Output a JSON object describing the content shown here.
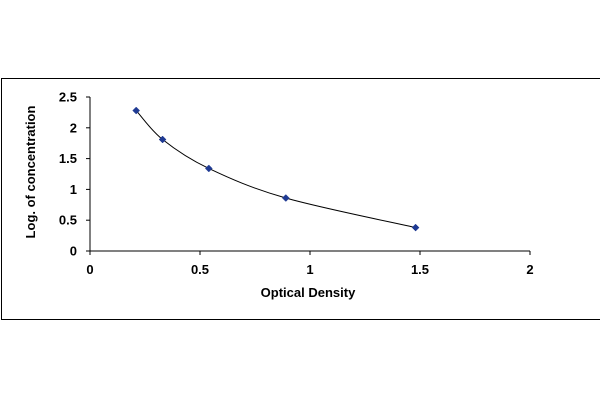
{
  "chart_data": {
    "type": "scatter",
    "title": "",
    "xlabel": "Optical Density",
    "ylabel": "Log. of concentration",
    "xlim": [
      0,
      2
    ],
    "ylim": [
      0,
      2.5
    ],
    "x_ticks": [
      "0",
      "0.5",
      "1",
      "1.5",
      "2"
    ],
    "y_ticks": [
      "0",
      "0.5",
      "1",
      "1.5",
      "2",
      "2.5"
    ],
    "grid": false,
    "legend": "none",
    "trendline": true,
    "series": [
      {
        "x": [
          0.21,
          0.33,
          0.54,
          0.89,
          1.48
        ],
        "y": [
          2.28,
          1.81,
          1.34,
          0.86,
          0.38
        ],
        "color": "#1f3a93"
      }
    ]
  }
}
